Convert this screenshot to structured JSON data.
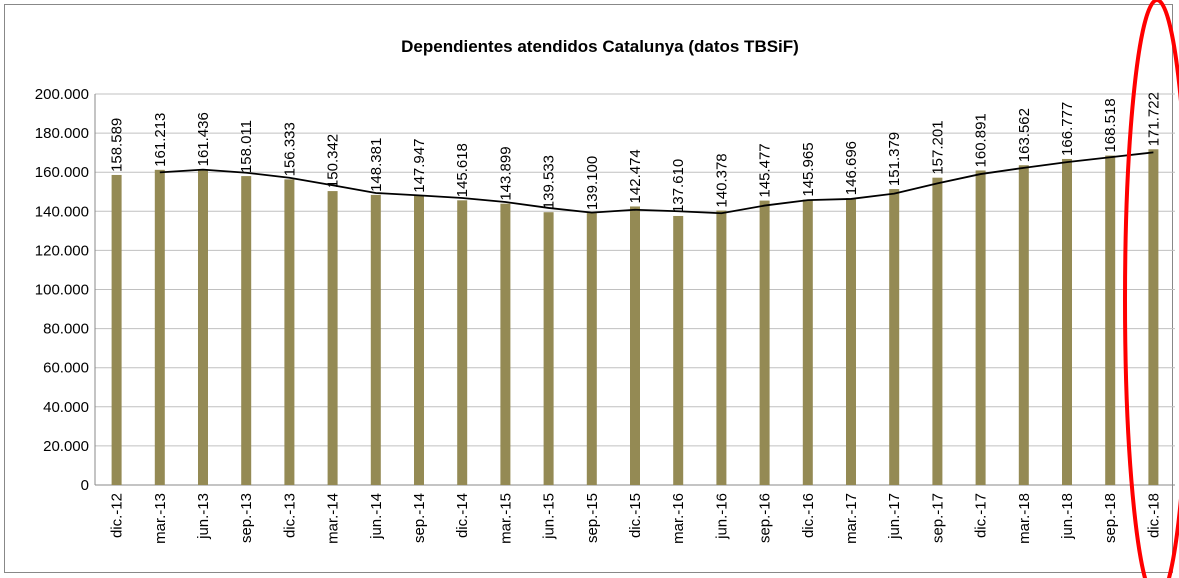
{
  "chart_data": {
    "type": "bar",
    "title": "Dependientes atendidos Catalunya (datos TBSiF)",
    "categories": [
      "dic.-12",
      "mar.-13",
      "jun.-13",
      "sep.-13",
      "dic.-13",
      "mar.-14",
      "jun.-14",
      "sep.-14",
      "dic.-14",
      "mar.-15",
      "jun.-15",
      "sep.-15",
      "dic.-15",
      "mar.-16",
      "jun.-16",
      "sep.-16",
      "dic.-16",
      "mar.-17",
      "jun.-17",
      "sep.-17",
      "dic.-17",
      "mar.-18",
      "jun.-18",
      "sep.-18",
      "dic.-18"
    ],
    "series": [
      {
        "type": "bar",
        "color": "#948a54",
        "values": [
          158589,
          161213,
          161436,
          158011,
          156333,
          150342,
          148381,
          147947,
          145618,
          143899,
          139533,
          139100,
          142474,
          137610,
          140378,
          145477,
          145965,
          146696,
          151379,
          157201,
          160891,
          163562,
          166777,
          168518,
          171722
        ],
        "value_labels": [
          "158.589",
          "161.213",
          "161.436",
          "158.011",
          "156.333",
          "150.342",
          "148.381",
          "147.947",
          "145.618",
          "143.899",
          "139.533",
          "139.100",
          "142.474",
          "137.610",
          "140.378",
          "145.477",
          "145.965",
          "146.696",
          "151.379",
          "157.201",
          "160.891",
          "163.562",
          "166.777",
          "168.518",
          "171.722"
        ]
      },
      {
        "type": "line",
        "color": "#000000",
        "values": [
          null,
          159901,
          161325,
          159724,
          157172,
          153338,
          149362,
          148164,
          146783,
          144759,
          141716,
          139317,
          140787,
          140042,
          138994,
          142928,
          145721,
          146331,
          149038,
          154290,
          159046,
          162227,
          165170,
          167648,
          170120
        ]
      }
    ],
    "ylim": [
      0,
      200000
    ],
    "yticks": [
      {
        "value": 0,
        "label": "0"
      },
      {
        "value": 20000,
        "label": "20.000"
      },
      {
        "value": 40000,
        "label": "40.000"
      },
      {
        "value": 60000,
        "label": "60.000"
      },
      {
        "value": 80000,
        "label": "80.000"
      },
      {
        "value": 100000,
        "label": "100.000"
      },
      {
        "value": 120000,
        "label": "120.000"
      },
      {
        "value": 140000,
        "label": "140.000"
      },
      {
        "value": 160000,
        "label": "160.000"
      },
      {
        "value": 180000,
        "label": "180.000"
      },
      {
        "value": 200000,
        "label": "200.000"
      }
    ],
    "grid": true
  }
}
